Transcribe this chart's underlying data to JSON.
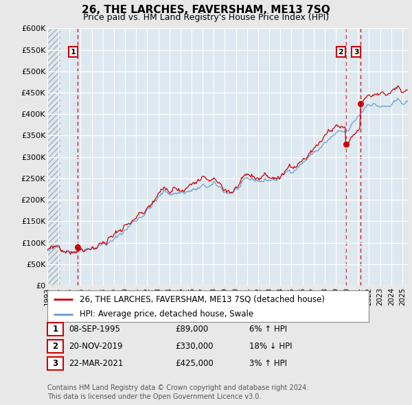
{
  "title": "26, THE LARCHES, FAVERSHAM, ME13 7SQ",
  "subtitle": "Price paid vs. HM Land Registry's House Price Index (HPI)",
  "ylabel_ticks": [
    "£0",
    "£50K",
    "£100K",
    "£150K",
    "£200K",
    "£250K",
    "£300K",
    "£350K",
    "£400K",
    "£450K",
    "£500K",
    "£550K",
    "£600K"
  ],
  "ytick_values": [
    0,
    50000,
    100000,
    150000,
    200000,
    250000,
    300000,
    350000,
    400000,
    450000,
    500000,
    550000,
    600000
  ],
  "xmin": 1993.0,
  "xmax": 2025.5,
  "ymin": 0,
  "ymax": 600000,
  "hpi_color": "#6699cc",
  "price_color": "#cc0000",
  "dashed_line_color": "#cc0000",
  "bg_color": "#e8e8e8",
  "plot_bg_color": "#dde8f0",
  "grid_color": "#ffffff",
  "legend_label_price": "26, THE LARCHES, FAVERSHAM, ME13 7SQ (detached house)",
  "legend_label_hpi": "HPI: Average price, detached house, Swale",
  "transactions": [
    {
      "num": 1,
      "date": "08-SEP-1995",
      "price": 89000,
      "year": 1995.7,
      "hpi_pct": "6% ↑ HPI"
    },
    {
      "num": 2,
      "date": "20-NOV-2019",
      "price": 330000,
      "year": 2019.9,
      "hpi_pct": "18% ↓ HPI"
    },
    {
      "num": 3,
      "date": "22-MAR-2021",
      "price": 425000,
      "year": 2021.2,
      "hpi_pct": "3% ↑ HPI"
    }
  ],
  "footer": "Contains HM Land Registry data © Crown copyright and database right 2024.\nThis data is licensed under the Open Government Licence v3.0.",
  "title_fontsize": 11,
  "subtitle_fontsize": 9,
  "tick_fontsize": 8,
  "legend_fontsize": 8.5,
  "table_fontsize": 8.5,
  "footer_fontsize": 7
}
